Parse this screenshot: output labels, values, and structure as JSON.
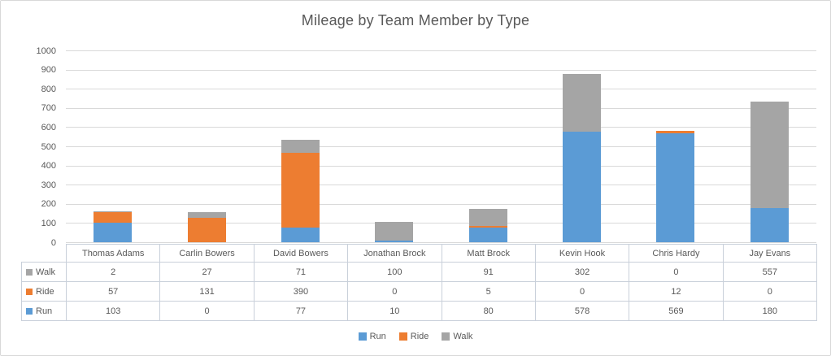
{
  "title": "Mileage by Team Member by Type",
  "colors": {
    "run": "#5B9BD5",
    "ride": "#ED7D31",
    "walk": "#A5A5A5",
    "title_text": "#595959",
    "axis_text": "#595959",
    "gridline": "#D9D9D9",
    "table_border": "#C9D0DA",
    "outer_border": "#D8D8D8",
    "background": "#FFFFFF"
  },
  "chart_data": {
    "type": "bar",
    "stacked": true,
    "title": "Mileage by Team Member by Type",
    "xlabel": "",
    "ylabel": "",
    "categories": [
      "Thomas Adams",
      "Carlin Bowers",
      "David Bowers",
      "Jonathan Brock",
      "Matt Brock",
      "Kevin Hook",
      "Chris Hardy",
      "Jay Evans"
    ],
    "series": [
      {
        "name": "Run",
        "color": "#5B9BD5",
        "values": [
          103,
          0,
          77,
          10,
          80,
          578,
          569,
          180
        ]
      },
      {
        "name": "Ride",
        "color": "#ED7D31",
        "values": [
          57,
          131,
          390,
          0,
          5,
          0,
          12,
          0
        ]
      },
      {
        "name": "Walk",
        "color": "#A5A5A5",
        "values": [
          2,
          27,
          71,
          100,
          91,
          302,
          0,
          557
        ]
      }
    ],
    "ylim": [
      0,
      1000
    ],
    "yticks": [
      0,
      100,
      200,
      300,
      400,
      500,
      600,
      700,
      800,
      900,
      1000
    ],
    "grid": true,
    "legend": {
      "position": "bottom",
      "entries": [
        "Run",
        "Ride",
        "Walk"
      ]
    },
    "data_table": {
      "visible": true,
      "row_order": [
        "Walk",
        "Ride",
        "Run"
      ]
    }
  }
}
